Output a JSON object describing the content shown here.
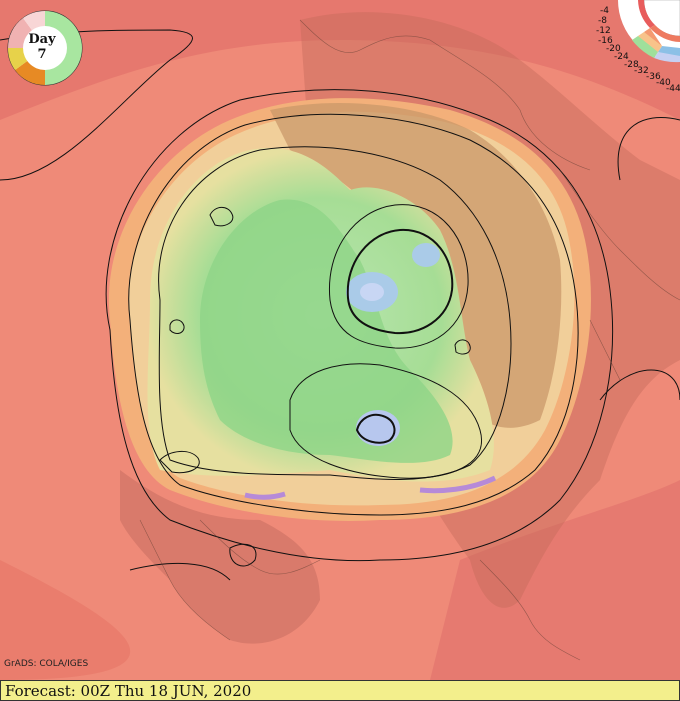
{
  "map": {
    "forecast_label": "Forecast: 00Z Thu 18 JUN, 2020",
    "credit": "GrADS: COLA/IGES",
    "day_label": "Day",
    "day_number": "7",
    "color_scale": {
      "ticks": [
        "-4",
        "-8",
        "-12",
        "-16",
        "-20",
        "-24",
        "-28",
        "-32",
        "-36",
        "-40",
        "-44"
      ],
      "colors": [
        "#e85c5c",
        "#ee7a60",
        "#f49a70",
        "#f8c38a",
        "#f5deaa",
        "#f0f0c8",
        "#c9ebb6",
        "#9fe09b",
        "#8cc0e6",
        "#c6d0f2",
        "#c8a2e8"
      ]
    },
    "day_dial": {
      "colors": [
        "#e7d24a",
        "#e78a24",
        "#f0c090",
        "#a8e6a0",
        "#f0b2b2"
      ]
    }
  }
}
